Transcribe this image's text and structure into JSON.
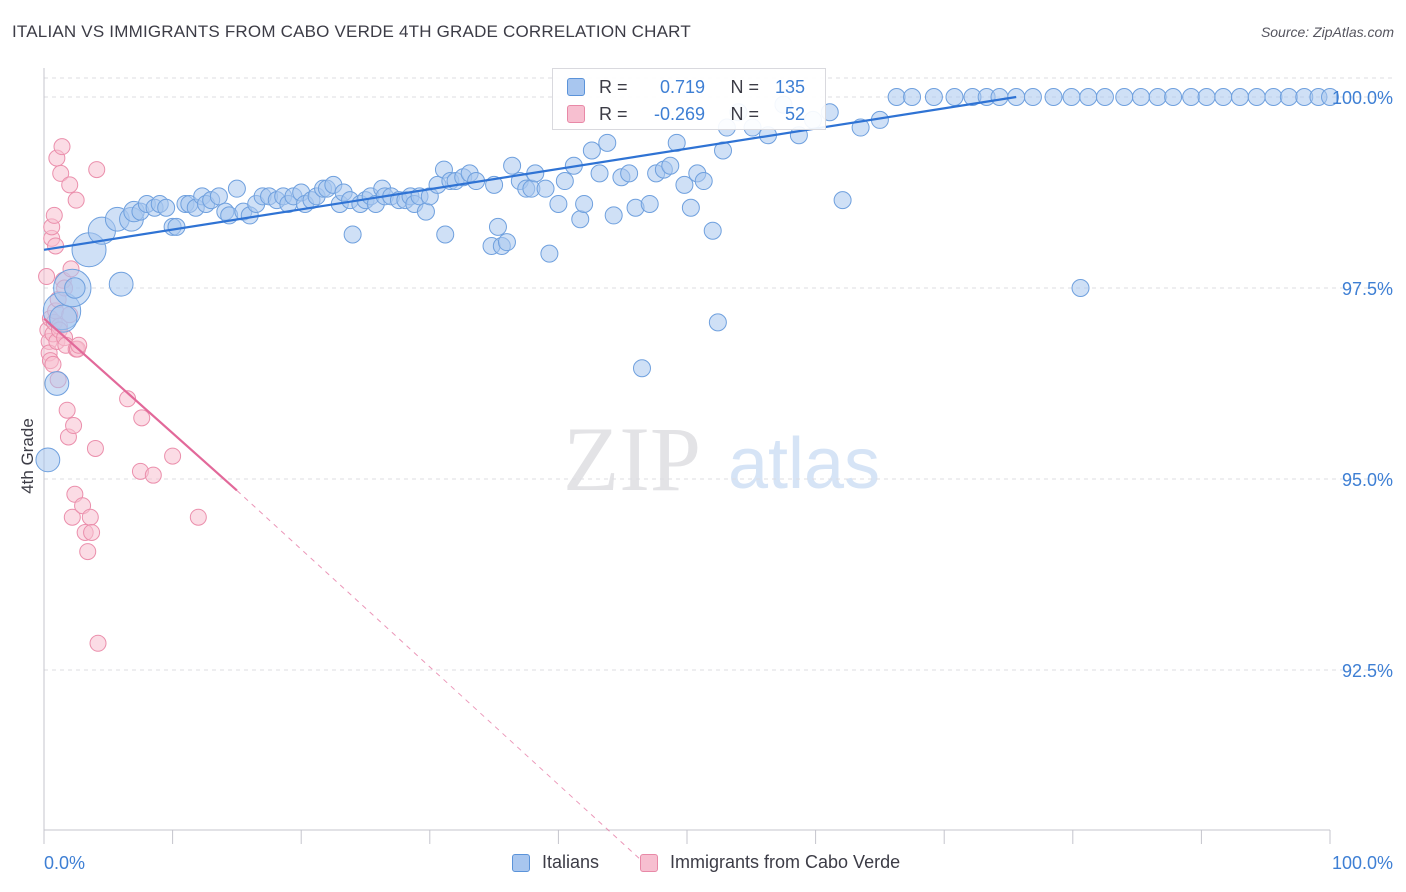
{
  "header": {
    "title": "ITALIAN VS IMMIGRANTS FROM CABO VERDE 4TH GRADE CORRELATION CHART",
    "source": "Source: ZipAtlas.com"
  },
  "watermark": {
    "zip": "ZIP",
    "atlas": "atlas"
  },
  "legend": {
    "r_label": "R =",
    "n_label": "N =",
    "rows": [
      {
        "r": "0.719",
        "n": "135",
        "color": "#a8c6ef",
        "border": "#5b93d9"
      },
      {
        "r": "-0.269",
        "n": "52",
        "color": "#f7bfd0",
        "border": "#e889a7"
      }
    ]
  },
  "colors": {
    "italians_fill": "#a8c6ef",
    "italians_stroke": "#6fa0de",
    "italians_line": "#2f73d4",
    "caboverde_fill": "#f7bfd0",
    "caboverde_stroke": "#eb8fac",
    "caboverde_line": "#e2699a",
    "tick_text": "#3e7fd4",
    "grid": "#dcdce2"
  },
  "chart_data": {
    "type": "scatter",
    "title": "ITALIAN VS IMMIGRANTS FROM CABO VERDE 4TH GRADE CORRELATION CHART",
    "xlabel": "",
    "ylabel": "4th Grade",
    "xlim": [
      0,
      100
    ],
    "ylim": [
      90.0,
      100.35
    ],
    "x_tick_labels": {
      "0": "0.0%",
      "100": "100.0%"
    },
    "y_ticks": [
      92.5,
      95.0,
      97.5,
      100.0
    ],
    "y_tick_labels": [
      "92.5%",
      "95.0%",
      "97.5%",
      "100.0%"
    ],
    "grid": true,
    "legend_position": "bottom",
    "series": [
      {
        "name": "Italians",
        "r": 0.719,
        "n": 135,
        "trend": {
          "x": [
            0,
            75.6
          ],
          "y": [
            98.0,
            100.0
          ]
        },
        "points": [
          [
            0.3,
            95.25,
            14
          ],
          [
            1.0,
            96.25,
            14
          ],
          [
            1.4,
            97.2,
            22
          ],
          [
            1.5,
            97.1,
            16
          ],
          [
            2.2,
            97.5,
            22
          ],
          [
            2.4,
            97.5,
            12
          ],
          [
            3.5,
            98.0,
            20
          ],
          [
            4.5,
            98.25,
            16
          ],
          [
            5.7,
            98.4,
            14
          ],
          [
            6.0,
            97.55,
            14
          ],
          [
            6.8,
            98.4,
            14
          ],
          [
            7.0,
            98.5,
            12
          ],
          [
            7.5,
            98.5,
            10
          ],
          [
            8.0,
            98.6,
            10
          ],
          [
            8.6,
            98.55,
            10
          ],
          [
            9.0,
            98.6,
            10
          ],
          [
            9.5,
            98.55,
            10
          ],
          [
            10.0,
            98.3,
            10
          ],
          [
            10.3,
            98.3,
            10
          ],
          [
            11.0,
            98.6,
            10
          ],
          [
            11.3,
            98.6,
            10
          ],
          [
            11.8,
            98.55,
            10
          ],
          [
            12.3,
            98.7,
            10
          ],
          [
            12.6,
            98.6,
            10
          ],
          [
            13.0,
            98.65,
            10
          ],
          [
            13.6,
            98.7,
            10
          ],
          [
            14.1,
            98.5,
            10
          ],
          [
            14.4,
            98.45,
            10
          ],
          [
            15.0,
            98.8,
            10
          ],
          [
            15.5,
            98.5,
            10
          ],
          [
            16.0,
            98.45,
            10
          ],
          [
            16.5,
            98.6,
            10
          ],
          [
            17.0,
            98.7,
            10
          ],
          [
            17.5,
            98.7,
            10
          ],
          [
            18.1,
            98.65,
            10
          ],
          [
            18.6,
            98.7,
            10
          ],
          [
            19.0,
            98.6,
            10
          ],
          [
            19.4,
            98.7,
            10
          ],
          [
            20.0,
            98.75,
            10
          ],
          [
            20.3,
            98.6,
            10
          ],
          [
            20.8,
            98.65,
            10
          ],
          [
            21.2,
            98.7,
            10
          ],
          [
            21.7,
            98.8,
            10
          ],
          [
            22.0,
            98.8,
            10
          ],
          [
            22.5,
            98.85,
            10
          ],
          [
            23.0,
            98.6,
            10
          ],
          [
            23.3,
            98.75,
            10
          ],
          [
            23.8,
            98.65,
            10
          ],
          [
            24.0,
            98.2,
            10
          ],
          [
            24.6,
            98.6,
            10
          ],
          [
            25.0,
            98.65,
            10
          ],
          [
            25.4,
            98.7,
            10
          ],
          [
            25.8,
            98.6,
            10
          ],
          [
            26.3,
            98.8,
            10
          ],
          [
            26.5,
            98.7,
            10
          ],
          [
            27.0,
            98.7,
            10
          ],
          [
            27.6,
            98.65,
            10
          ],
          [
            28.1,
            98.65,
            10
          ],
          [
            28.5,
            98.7,
            10
          ],
          [
            28.8,
            98.6,
            10
          ],
          [
            29.2,
            98.7,
            10
          ],
          [
            29.7,
            98.5,
            10
          ],
          [
            30.0,
            98.7,
            10
          ],
          [
            30.6,
            98.85,
            10
          ],
          [
            31.1,
            99.05,
            10
          ],
          [
            31.6,
            98.9,
            10
          ],
          [
            32.0,
            98.9,
            10
          ],
          [
            32.6,
            98.95,
            10
          ],
          [
            33.1,
            99.0,
            10
          ],
          [
            33.6,
            98.9,
            10
          ],
          [
            31.2,
            98.2,
            10
          ],
          [
            35.0,
            98.85,
            10
          ],
          [
            34.8,
            98.05,
            10
          ],
          [
            35.3,
            98.3,
            10
          ],
          [
            35.6,
            98.05,
            10
          ],
          [
            36.0,
            98.1,
            10
          ],
          [
            36.4,
            99.1,
            10
          ],
          [
            37.0,
            98.9,
            10
          ],
          [
            37.5,
            98.8,
            10
          ],
          [
            37.9,
            98.8,
            10
          ],
          [
            38.2,
            99.0,
            10
          ],
          [
            39.0,
            98.8,
            10
          ],
          [
            39.3,
            97.95,
            10
          ],
          [
            40.0,
            98.6,
            10
          ],
          [
            40.5,
            98.9,
            10
          ],
          [
            41.2,
            99.1,
            10
          ],
          [
            41.7,
            98.4,
            10
          ],
          [
            42.0,
            98.6,
            10
          ],
          [
            42.6,
            99.3,
            10
          ],
          [
            43.2,
            99.0,
            10
          ],
          [
            43.8,
            99.4,
            10
          ],
          [
            44.3,
            98.45,
            10
          ],
          [
            44.9,
            98.95,
            10
          ],
          [
            45.5,
            99.0,
            10
          ],
          [
            46.0,
            98.55,
            10
          ],
          [
            46.5,
            96.45,
            10
          ],
          [
            47.1,
            98.6,
            10
          ],
          [
            47.6,
            99.0,
            10
          ],
          [
            48.2,
            99.05,
            10
          ],
          [
            48.7,
            99.1,
            10
          ],
          [
            49.2,
            99.4,
            10
          ],
          [
            49.8,
            98.85,
            10
          ],
          [
            50.3,
            98.55,
            10
          ],
          [
            50.8,
            99.0,
            10
          ],
          [
            51.3,
            98.9,
            10
          ],
          [
            52.0,
            98.25,
            10
          ],
          [
            52.4,
            97.05,
            10
          ],
          [
            52.8,
            99.3,
            10
          ],
          [
            53.1,
            99.6,
            10
          ],
          [
            54.0,
            99.8,
            10
          ],
          [
            55.1,
            99.6,
            10
          ],
          [
            56.3,
            99.5,
            10
          ],
          [
            57.5,
            99.9,
            10
          ],
          [
            58.7,
            99.5,
            10
          ],
          [
            59.8,
            99.7,
            10
          ],
          [
            61.1,
            99.8,
            10
          ],
          [
            62.1,
            98.65,
            10
          ],
          [
            63.5,
            99.6,
            10
          ],
          [
            65.0,
            99.7,
            10
          ],
          [
            66.3,
            100.0,
            10
          ],
          [
            67.5,
            100.0,
            10
          ],
          [
            69.2,
            100.0,
            10
          ],
          [
            70.8,
            100.0,
            10
          ],
          [
            72.2,
            100.0,
            10
          ],
          [
            73.3,
            100.0,
            10
          ],
          [
            74.3,
            100.0,
            10
          ],
          [
            75.6,
            100.0,
            10
          ],
          [
            76.9,
            100.0,
            10
          ],
          [
            78.5,
            100.0,
            10
          ],
          [
            79.9,
            100.0,
            10
          ],
          [
            81.2,
            100.0,
            10
          ],
          [
            82.5,
            100.0,
            10
          ],
          [
            84.0,
            100.0,
            10
          ],
          [
            85.3,
            100.0,
            10
          ],
          [
            86.6,
            100.0,
            10
          ],
          [
            87.8,
            100.0,
            10
          ],
          [
            89.2,
            100.0,
            10
          ],
          [
            90.4,
            100.0,
            10
          ],
          [
            91.7,
            100.0,
            10
          ],
          [
            93.0,
            100.0,
            10
          ],
          [
            94.3,
            100.0,
            10
          ],
          [
            95.6,
            100.0,
            10
          ],
          [
            96.8,
            100.0,
            10
          ],
          [
            80.6,
            97.5,
            10
          ],
          [
            98.0,
            100.0,
            10
          ],
          [
            99.1,
            100.0,
            10
          ],
          [
            100.0,
            100.0,
            10
          ]
        ]
      },
      {
        "name": "Immigrants from Cabo Verde",
        "r": -0.269,
        "n": 52,
        "trend": {
          "x": [
            0,
            15
          ],
          "y": [
            97.1,
            94.85
          ]
        },
        "trend_extension": {
          "x": [
            15,
            46.5
          ],
          "y": [
            94.85,
            90.0
          ]
        },
        "points": [
          [
            0.2,
            97.65,
            10
          ],
          [
            0.3,
            96.95,
            10
          ],
          [
            0.4,
            96.8,
            10
          ],
          [
            0.4,
            96.65,
            10
          ],
          [
            0.5,
            97.1,
            10
          ],
          [
            0.5,
            96.55,
            10
          ],
          [
            0.6,
            98.15,
            10
          ],
          [
            0.6,
            98.3,
            10
          ],
          [
            0.7,
            96.9,
            10
          ],
          [
            0.7,
            96.5,
            10
          ],
          [
            0.8,
            97.05,
            10
          ],
          [
            0.8,
            98.45,
            10
          ],
          [
            0.9,
            97.2,
            10
          ],
          [
            0.9,
            98.05,
            10
          ],
          [
            1.0,
            99.2,
            10
          ],
          [
            1.0,
            96.8,
            10
          ],
          [
            1.1,
            97.35,
            10
          ],
          [
            1.1,
            96.3,
            10
          ],
          [
            1.2,
            97.0,
            10
          ],
          [
            1.2,
            96.95,
            10
          ],
          [
            1.3,
            99.0,
            10
          ],
          [
            1.4,
            99.35,
            10
          ],
          [
            1.5,
            97.6,
            10
          ],
          [
            1.6,
            97.5,
            10
          ],
          [
            1.6,
            96.85,
            10
          ],
          [
            1.7,
            96.75,
            10
          ],
          [
            1.8,
            95.9,
            10
          ],
          [
            1.9,
            95.55,
            10
          ],
          [
            2.0,
            98.85,
            10
          ],
          [
            2.0,
            97.15,
            10
          ],
          [
            2.1,
            97.75,
            10
          ],
          [
            2.2,
            94.5,
            10
          ],
          [
            2.3,
            95.7,
            10
          ],
          [
            2.4,
            94.8,
            10
          ],
          [
            2.5,
            98.65,
            10
          ],
          [
            2.5,
            96.7,
            10
          ],
          [
            2.6,
            96.7,
            10
          ],
          [
            2.7,
            96.75,
            10
          ],
          [
            3.0,
            94.65,
            10
          ],
          [
            3.2,
            94.3,
            10
          ],
          [
            3.4,
            94.05,
            10
          ],
          [
            3.6,
            94.5,
            10
          ],
          [
            3.7,
            94.3,
            10
          ],
          [
            4.0,
            95.4,
            10
          ],
          [
            4.1,
            99.05,
            10
          ],
          [
            4.2,
            92.85,
            10
          ],
          [
            6.5,
            96.05,
            10
          ],
          [
            7.5,
            95.1,
            10
          ],
          [
            7.6,
            95.8,
            10
          ],
          [
            8.5,
            95.05,
            10
          ],
          [
            10.0,
            95.3,
            10
          ],
          [
            12.0,
            94.5,
            10
          ]
        ]
      }
    ]
  }
}
